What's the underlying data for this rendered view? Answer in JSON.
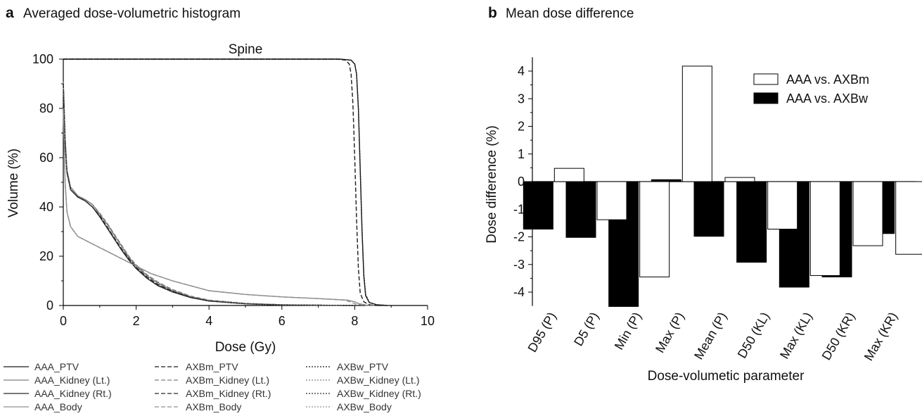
{
  "panels": {
    "a": {
      "letter": "a",
      "title": "Averaged dose-volumetric histogram"
    },
    "b": {
      "letter": "b",
      "title": "Mean dose difference"
    }
  },
  "chart_data": [
    {
      "type": "line",
      "subtitle": "Spine",
      "xlabel": "Dose (Gy)",
      "ylabel": "Volume (%)",
      "xlim": [
        0,
        10
      ],
      "ylim": [
        0,
        100
      ],
      "xticks": [
        0,
        2,
        4,
        6,
        8,
        10
      ],
      "yticks": [
        0,
        20,
        40,
        60,
        80,
        100
      ],
      "grid": false,
      "legend_position": "bottom",
      "series": [
        {
          "name": "AAA_PTV",
          "color": "#1a1a1a",
          "dash": "solid",
          "points": [
            [
              0,
              100
            ],
            [
              7.6,
              100
            ],
            [
              7.9,
              99.6
            ],
            [
              8.0,
              98
            ],
            [
              8.05,
              94
            ],
            [
              8.1,
              80
            ],
            [
              8.15,
              55
            ],
            [
              8.2,
              30
            ],
            [
              8.25,
              12
            ],
            [
              8.3,
              4
            ],
            [
              8.4,
              1.2
            ],
            [
              8.6,
              0.3
            ],
            [
              8.9,
              0
            ]
          ]
        },
        {
          "name": "AAA_Kidney (Lt.)",
          "color": "#808080",
          "dash": "solid",
          "points": [
            [
              0,
              91
            ],
            [
              0.05,
              68
            ],
            [
              0.1,
              55
            ],
            [
              0.2,
              48
            ],
            [
              0.4,
              44.5
            ],
            [
              0.6,
              43
            ],
            [
              0.8,
              41
            ],
            [
              1.0,
              37
            ],
            [
              1.2,
              33
            ],
            [
              1.4,
              28.5
            ],
            [
              1.6,
              24
            ],
            [
              1.8,
              19.5
            ],
            [
              2.0,
              16
            ],
            [
              2.3,
              12
            ],
            [
              2.6,
              9
            ],
            [
              3.0,
              6
            ],
            [
              3.5,
              3.5
            ],
            [
              4.0,
              2
            ],
            [
              5.0,
              0.8
            ],
            [
              6.0,
              0.3
            ],
            [
              7.0,
              0.1
            ],
            [
              8.0,
              0
            ]
          ]
        },
        {
          "name": "AAA_Kidney (Rt.)",
          "color": "#2a2a2a",
          "dash": "solid",
          "points": [
            [
              0,
              90
            ],
            [
              0.05,
              66
            ],
            [
              0.1,
              54
            ],
            [
              0.2,
              47
            ],
            [
              0.4,
              44
            ],
            [
              0.6,
              42.5
            ],
            [
              0.8,
              40
            ],
            [
              1.0,
              36
            ],
            [
              1.2,
              31.5
            ],
            [
              1.4,
              27
            ],
            [
              1.6,
              22.5
            ],
            [
              1.8,
              18.5
            ],
            [
              2.0,
              15
            ],
            [
              2.3,
              11
            ],
            [
              2.6,
              8
            ],
            [
              3.0,
              5.5
            ],
            [
              3.5,
              3.2
            ],
            [
              4.0,
              1.8
            ],
            [
              5.0,
              0.7
            ],
            [
              6.0,
              0.2
            ],
            [
              7.0,
              0.1
            ],
            [
              8.0,
              0
            ]
          ]
        },
        {
          "name": "AAA_Body",
          "color": "#909090",
          "dash": "solid",
          "points": [
            [
              0,
              80
            ],
            [
              0.05,
              50
            ],
            [
              0.1,
              38
            ],
            [
              0.2,
              32
            ],
            [
              0.4,
              28
            ],
            [
              0.8,
              25
            ],
            [
              1.2,
              22
            ],
            [
              1.6,
              19
            ],
            [
              2.0,
              16
            ],
            [
              2.4,
              13
            ],
            [
              3.0,
              10
            ],
            [
              4.0,
              6
            ],
            [
              5.0,
              4.5
            ],
            [
              6.0,
              3.5
            ],
            [
              7.0,
              2.8
            ],
            [
              7.8,
              2.2
            ],
            [
              8.0,
              1.5
            ],
            [
              8.1,
              0.8
            ],
            [
              8.3,
              0.2
            ],
            [
              8.6,
              0
            ]
          ]
        },
        {
          "name": "AXBm_PTV",
          "color": "#1a1a1a",
          "dash": "dashed",
          "points": [
            [
              0,
              100
            ],
            [
              7.5,
              100
            ],
            [
              7.75,
              99.6
            ],
            [
              7.85,
              98
            ],
            [
              7.9,
              94
            ],
            [
              7.95,
              82
            ],
            [
              8.0,
              60
            ],
            [
              8.05,
              35
            ],
            [
              8.1,
              15
            ],
            [
              8.15,
              5
            ],
            [
              8.25,
              1.5
            ],
            [
              8.4,
              0.3
            ],
            [
              8.6,
              0
            ]
          ]
        },
        {
          "name": "AXBm_Kidney (Lt.)",
          "color": "#808080",
          "dash": "dashed",
          "points": [
            [
              0,
              91
            ],
            [
              0.05,
              68
            ],
            [
              0.1,
              55
            ],
            [
              0.2,
              48
            ],
            [
              0.4,
              44.5
            ],
            [
              0.6,
              43
            ],
            [
              0.8,
              41
            ],
            [
              1.0,
              37.5
            ],
            [
              1.2,
              33.5
            ],
            [
              1.4,
              29
            ],
            [
              1.6,
              24.5
            ],
            [
              1.8,
              20
            ],
            [
              2.0,
              16.5
            ],
            [
              2.3,
              12.5
            ],
            [
              2.6,
              9.5
            ],
            [
              3.0,
              6.5
            ],
            [
              3.5,
              3.8
            ],
            [
              4.0,
              2.2
            ],
            [
              5.0,
              0.9
            ],
            [
              6.0,
              0.3
            ],
            [
              7.0,
              0.1
            ],
            [
              8.0,
              0
            ]
          ]
        },
        {
          "name": "AXBm_Kidney (Rt.)",
          "color": "#2a2a2a",
          "dash": "dashed",
          "points": [
            [
              0,
              90
            ],
            [
              0.05,
              66
            ],
            [
              0.1,
              54
            ],
            [
              0.2,
              47
            ],
            [
              0.4,
              44
            ],
            [
              0.6,
              42.5
            ],
            [
              0.8,
              40
            ],
            [
              1.0,
              36.5
            ],
            [
              1.2,
              32
            ],
            [
              1.4,
              27.5
            ],
            [
              1.6,
              23
            ],
            [
              1.8,
              19
            ],
            [
              2.0,
              15.5
            ],
            [
              2.3,
              11.5
            ],
            [
              2.6,
              8.5
            ],
            [
              3.0,
              5.8
            ],
            [
              3.5,
              3.4
            ],
            [
              4.0,
              1.9
            ],
            [
              5.0,
              0.7
            ],
            [
              6.0,
              0.2
            ],
            [
              7.0,
              0.1
            ],
            [
              8.0,
              0
            ]
          ]
        },
        {
          "name": "AXBm_Body",
          "color": "#909090",
          "dash": "dashed",
          "points": [
            [
              0,
              80
            ],
            [
              0.05,
              50
            ],
            [
              0.1,
              38
            ],
            [
              0.2,
              32
            ],
            [
              0.4,
              28
            ],
            [
              0.8,
              25
            ],
            [
              1.2,
              22
            ],
            [
              1.6,
              19
            ],
            [
              2.0,
              16
            ],
            [
              2.4,
              13
            ],
            [
              3.0,
              10
            ],
            [
              4.0,
              6
            ],
            [
              5.0,
              4.5
            ],
            [
              6.0,
              3.5
            ],
            [
              7.0,
              2.8
            ],
            [
              7.7,
              2.2
            ],
            [
              7.9,
              1.4
            ],
            [
              8.0,
              0.7
            ],
            [
              8.2,
              0.2
            ],
            [
              8.4,
              0
            ]
          ]
        },
        {
          "name": "AXBw_PTV",
          "color": "#1a1a1a",
          "dash": "dotted",
          "points": [
            [
              0,
              100
            ],
            [
              7.6,
              100
            ],
            [
              7.9,
              99.6
            ],
            [
              8.0,
              98
            ],
            [
              8.05,
              94
            ],
            [
              8.1,
              80
            ],
            [
              8.15,
              56
            ],
            [
              8.2,
              31
            ],
            [
              8.25,
              13
            ],
            [
              8.3,
              4.5
            ],
            [
              8.4,
              1.3
            ],
            [
              8.6,
              0.3
            ],
            [
              8.9,
              0
            ]
          ]
        },
        {
          "name": "AXBw_Kidney (Lt.)",
          "color": "#808080",
          "dash": "dotted",
          "points": [
            [
              0,
              91
            ],
            [
              0.05,
              68
            ],
            [
              0.1,
              55
            ],
            [
              0.2,
              48
            ],
            [
              0.4,
              44.5
            ],
            [
              0.6,
              43
            ],
            [
              0.8,
              41
            ],
            [
              1.0,
              37.2
            ],
            [
              1.2,
              33.2
            ],
            [
              1.4,
              28.7
            ],
            [
              1.6,
              24.2
            ],
            [
              1.8,
              19.7
            ],
            [
              2.0,
              16.2
            ],
            [
              2.3,
              12.2
            ],
            [
              2.6,
              9.2
            ],
            [
              3.0,
              6.2
            ],
            [
              3.5,
              3.6
            ],
            [
              4.0,
              2.1
            ],
            [
              5.0,
              0.8
            ],
            [
              6.0,
              0.3
            ],
            [
              7.0,
              0.1
            ],
            [
              8.0,
              0
            ]
          ]
        },
        {
          "name": "AXBw_Kidney (Rt.)",
          "color": "#2a2a2a",
          "dash": "dotted",
          "points": [
            [
              0,
              90
            ],
            [
              0.05,
              66
            ],
            [
              0.1,
              54
            ],
            [
              0.2,
              47
            ],
            [
              0.4,
              44
            ],
            [
              0.6,
              42.5
            ],
            [
              0.8,
              40
            ],
            [
              1.0,
              36.2
            ],
            [
              1.2,
              31.7
            ],
            [
              1.4,
              27.2
            ],
            [
              1.6,
              22.7
            ],
            [
              1.8,
              18.7
            ],
            [
              2.0,
              15.2
            ],
            [
              2.3,
              11.2
            ],
            [
              2.6,
              8.2
            ],
            [
              3.0,
              5.6
            ],
            [
              3.5,
              3.3
            ],
            [
              4.0,
              1.8
            ],
            [
              5.0,
              0.7
            ],
            [
              6.0,
              0.2
            ],
            [
              7.0,
              0.1
            ],
            [
              8.0,
              0
            ]
          ]
        },
        {
          "name": "AXBw_Body",
          "color": "#909090",
          "dash": "dotted",
          "points": [
            [
              0,
              80
            ],
            [
              0.05,
              50
            ],
            [
              0.1,
              38
            ],
            [
              0.2,
              32
            ],
            [
              0.4,
              28
            ],
            [
              0.8,
              25
            ],
            [
              1.2,
              22
            ],
            [
              1.6,
              19
            ],
            [
              2.0,
              16
            ],
            [
              2.4,
              13
            ],
            [
              3.0,
              10
            ],
            [
              4.0,
              6
            ],
            [
              5.0,
              4.5
            ],
            [
              6.0,
              3.5
            ],
            [
              7.0,
              2.8
            ],
            [
              7.8,
              2.2
            ],
            [
              8.0,
              1.5
            ],
            [
              8.1,
              0.8
            ],
            [
              8.3,
              0.2
            ],
            [
              8.6,
              0
            ]
          ]
        }
      ]
    },
    {
      "type": "bar",
      "xlabel": "Dose-volumetic parameter",
      "ylabel": "Dose difference (%)",
      "ylim": [
        -4.5,
        4.5
      ],
      "yticks": [
        -4,
        -3,
        -2,
        -1,
        0,
        1,
        2,
        3,
        4
      ],
      "grid": false,
      "legend_position": "top-right",
      "categories": [
        "D95 (P)",
        "D5 (P)",
        "Min (P)",
        "Max (P)",
        "Mean (P)",
        "D50 (KL)",
        "Max (KL)",
        "D50 (KR)",
        "Max (KR)"
      ],
      "series": [
        {
          "name": "AAA vs. AXBw",
          "fill": "#000000",
          "values": [
            -1.72,
            -2.02,
            -4.52,
            0.07,
            -1.98,
            -2.92,
            -3.82,
            -3.45,
            -1.88
          ]
        },
        {
          "name": "AAA vs. AXBm",
          "fill": "#ffffff",
          "values": [
            0.48,
            -1.38,
            -3.45,
            4.18,
            0.15,
            -1.72,
            -3.4,
            -2.32,
            -2.63
          ]
        }
      ]
    }
  ]
}
